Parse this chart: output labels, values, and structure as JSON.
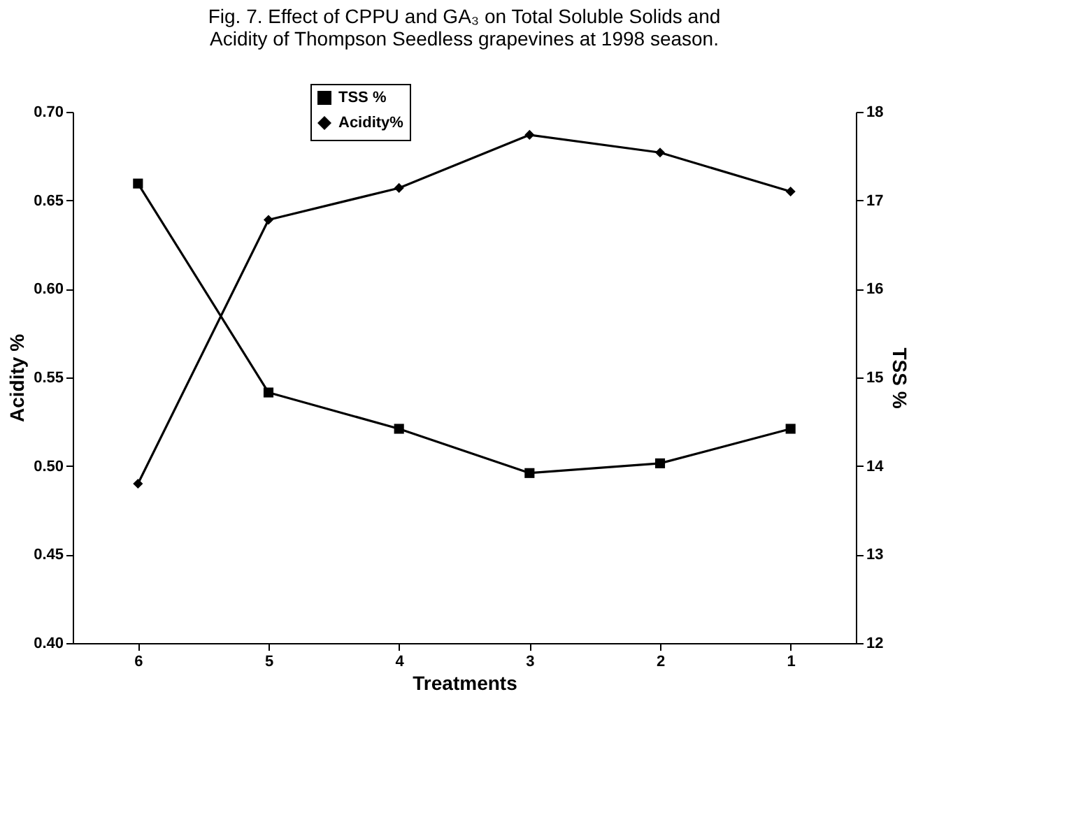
{
  "chart_data": {
    "type": "line",
    "title": "Fig. 7. Effect of CPPU and GA₃ on Total Soluble Solids and\nAcidity of Thompson Seedless grapevines at 1998 season.",
    "xlabel": "Treatments",
    "ylabel": "Acidity %",
    "y2label": "TSS %",
    "categories": [
      "6",
      "5",
      "4",
      "3",
      "2",
      "1"
    ],
    "series": [
      {
        "name": "TSS %",
        "color": "#000000",
        "marker": "square",
        "axis": "y2",
        "values": [
          17.19,
          14.83,
          14.42,
          13.92,
          14.03,
          14.42
        ]
      },
      {
        "name": "Acidity%",
        "color": "#000000",
        "marker": "diamond",
        "values": [
          0.49,
          0.639,
          0.657,
          0.687,
          0.677,
          0.655
        ]
      }
    ],
    "ylim": [
      0.4,
      0.7
    ],
    "yticks": [
      {
        "value": 0.4,
        "label": "0.40"
      },
      0.45,
      {
        "value": 0.5,
        "label": "0.50"
      },
      0.55,
      {
        "value": 0.6,
        "label": "0.60"
      },
      0.65,
      {
        "value": 0.7,
        "label": "0.70"
      }
    ],
    "y2lim": [
      12,
      18
    ],
    "y2ticks": [
      12,
      13,
      14,
      15,
      16,
      17,
      18
    ],
    "grid": false,
    "legend": "top",
    "line_style": "solid"
  }
}
